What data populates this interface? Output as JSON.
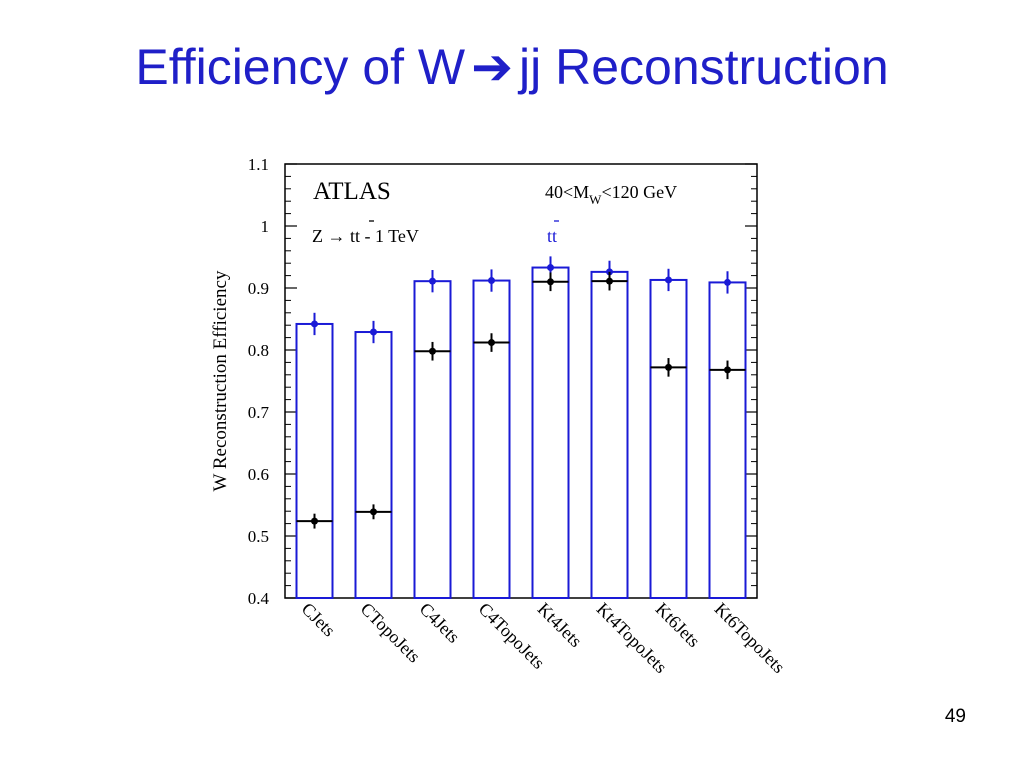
{
  "slide": {
    "title_part1": "Efficiency of W",
    "title_part2": "jj Reconstruction",
    "page_number": "49"
  },
  "colors": {
    "title": "#1f1fc8",
    "bars": "#1a1ad6",
    "z_markers": "#000000",
    "tt_markers": "#1a1ad6"
  },
  "chart_data": {
    "type": "bar",
    "title": "",
    "ylabel": "W Reconstruction Efficiency",
    "xlabel": "",
    "ylim": [
      0.4,
      1.1
    ],
    "yticks": [
      "0.4",
      "0.5",
      "0.6",
      "0.7",
      "0.8",
      "0.9",
      "1",
      "1.1"
    ],
    "categories": [
      "CJets",
      "CTopoJets",
      "C4Jets",
      "C4TopoJets",
      "Kt4Jets",
      "Kt4TopoJets",
      "Kt6Jets",
      "Kt6TopoJets"
    ],
    "annotations": {
      "experiment": "ATLAS",
      "mass_window": "40<M",
      "mass_sub": "W",
      "mass_window_rest": "<120 GeV"
    },
    "series": [
      {
        "name": "tt",
        "display": "bar",
        "values": [
          0.842,
          0.829,
          0.911,
          0.912,
          0.933,
          0.926,
          0.913,
          0.909
        ],
        "errors": [
          0.018,
          0.018,
          0.018,
          0.018,
          0.018,
          0.018,
          0.018,
          0.018
        ]
      },
      {
        "name": "Z → tt - 1 TeV",
        "display": "marker",
        "values": [
          0.524,
          0.539,
          0.798,
          0.812,
          0.91,
          0.911,
          0.772,
          0.768
        ],
        "errors": [
          0.012,
          0.012,
          0.015,
          0.015,
          0.015,
          0.015,
          0.015,
          0.015
        ]
      }
    ]
  }
}
